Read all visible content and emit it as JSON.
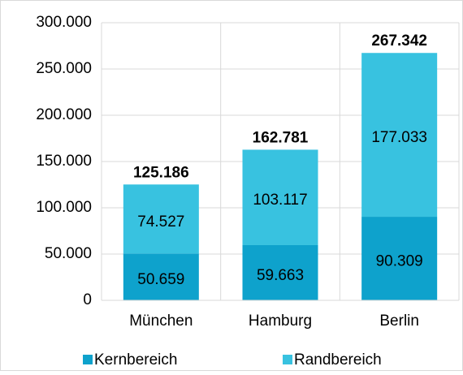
{
  "chart_data": {
    "type": "stacked_bar",
    "categories": [
      "München",
      "Hamburg",
      "Berlin"
    ],
    "series": [
      {
        "name": "Kernbereich",
        "color": "#0ea2cc",
        "values": [
          50659,
          59663,
          90309
        ],
        "value_labels": [
          "50.659",
          "59.663",
          "90.309"
        ]
      },
      {
        "name": "Randbereich",
        "color": "#38c2e0",
        "values": [
          74527,
          103117,
          177033
        ],
        "value_labels": [
          "74.527",
          "103.117",
          "177.033"
        ]
      }
    ],
    "totals": {
      "values": [
        125186,
        162781,
        267342
      ],
      "value_labels": [
        "125.186",
        "162.781",
        "267.342"
      ]
    },
    "ylim": [
      0,
      300000
    ],
    "yticks": [
      0,
      {
        "value": 50000,
        "label": "50.000"
      },
      {
        "value": 100000,
        "label": "100.000"
      },
      {
        "value": 150000,
        "label": "150.000"
      },
      {
        "value": 200000,
        "label": "200.000"
      },
      {
        "value": 250000,
        "label": "250.000"
      },
      {
        "value": 300000,
        "label": "300.000"
      }
    ],
    "grid": true,
    "legend": "bottom"
  }
}
